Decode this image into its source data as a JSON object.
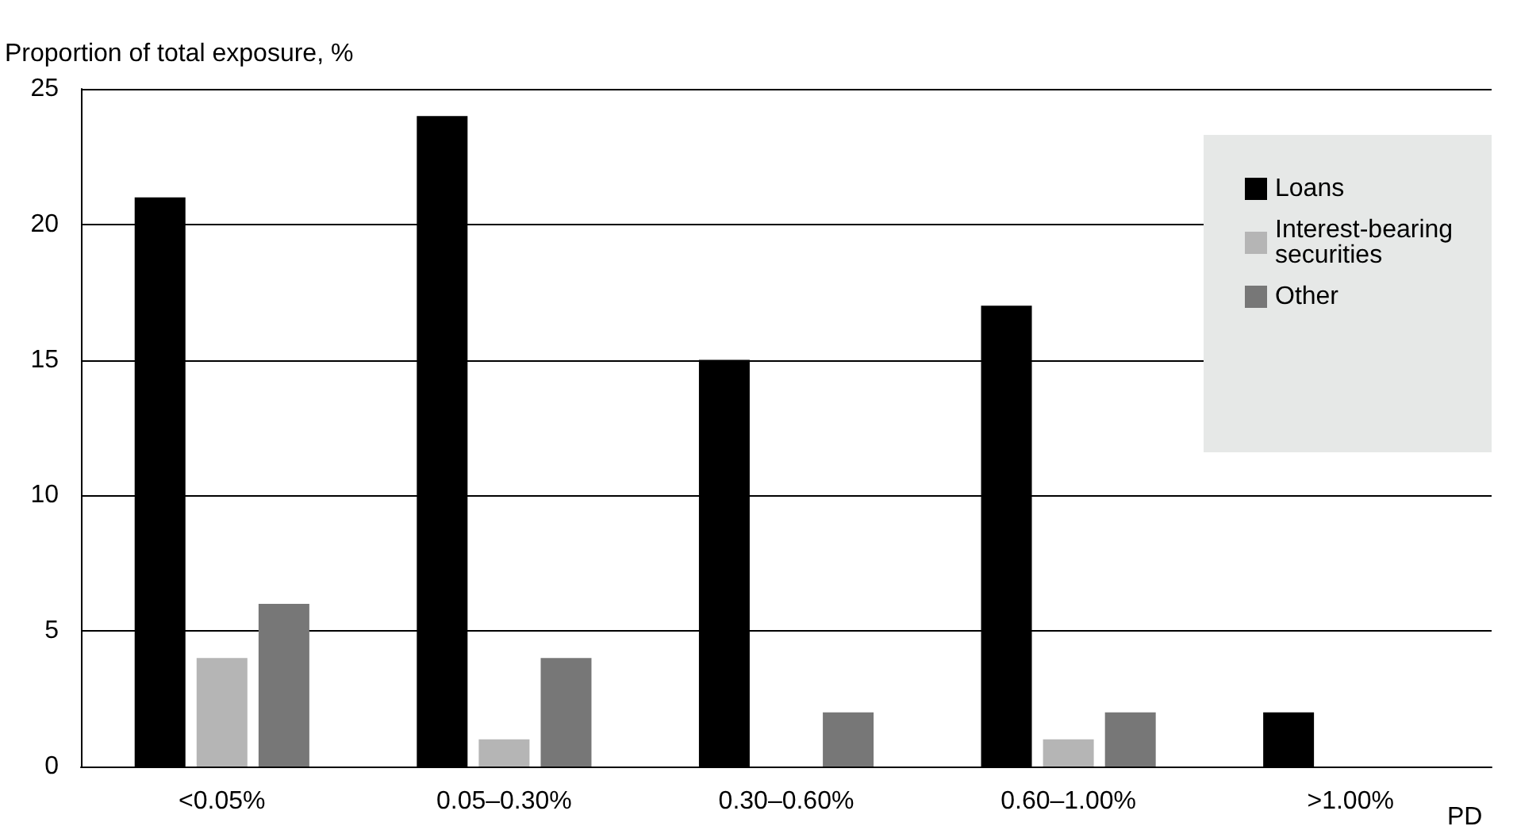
{
  "chart_data": {
    "type": "bar",
    "ylabel": "Proportion of total exposure, %",
    "xlabel": "PD",
    "categories": [
      "<0.05%",
      "0.05–0.30%",
      "0.30–0.60%",
      "0.60–1.00%",
      ">1.00%"
    ],
    "series": [
      {
        "name": "Loans",
        "color": "#000000",
        "values": [
          21,
          24,
          15,
          17,
          2
        ]
      },
      {
        "name": "Interest-bearing securities",
        "color": "#b5b5b5",
        "values": [
          4,
          1,
          0,
          1,
          0
        ]
      },
      {
        "name": "Other",
        "color": "#777777",
        "values": [
          6,
          4,
          2,
          2,
          0
        ]
      }
    ],
    "ylim": [
      0,
      25
    ],
    "yticks": [
      0,
      5,
      10,
      15,
      20,
      25
    ],
    "grid": "y",
    "legend": "top right"
  }
}
